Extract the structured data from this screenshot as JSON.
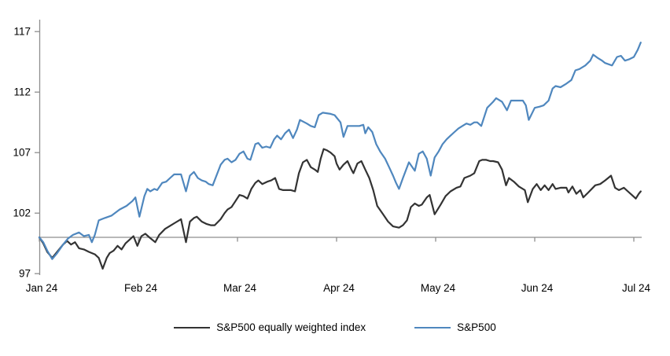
{
  "chart_data": {
    "type": "line",
    "title": "",
    "legend_position": "bottom",
    "background_color": "#ffffff",
    "axis_color": "#8e8e8e",
    "text_color": "#000000",
    "x_axis": {
      "unit": "month",
      "tick_labels": [
        "Jan 24",
        "Feb 24",
        "Mar 24",
        "Apr 24",
        "May 24",
        "Jun 24",
        "Jul 24"
      ],
      "range_months": [
        0,
        6.07
      ],
      "baseline_value": 100,
      "grid": false
    },
    "y_axis": {
      "ticks": [
        97,
        102,
        107,
        112,
        117
      ],
      "range": [
        97,
        118
      ],
      "grid": false
    },
    "series": [
      {
        "name": "S&P500 equally weighted index",
        "color": "#333333",
        "points": [
          [
            0,
            100
          ],
          [
            0.04,
            99.5
          ],
          [
            0.08,
            98.8
          ],
          [
            0.13,
            98.3
          ],
          [
            0.18,
            98.8
          ],
          [
            0.24,
            99.4
          ],
          [
            0.28,
            99.7
          ],
          [
            0.32,
            99.4
          ],
          [
            0.36,
            99.6
          ],
          [
            0.4,
            99.1
          ],
          [
            0.45,
            99
          ],
          [
            0.5,
            98.8
          ],
          [
            0.56,
            98.6
          ],
          [
            0.6,
            98.3
          ],
          [
            0.64,
            97.4
          ],
          [
            0.68,
            98.3
          ],
          [
            0.71,
            98.7
          ],
          [
            0.75,
            98.9
          ],
          [
            0.79,
            99.3
          ],
          [
            0.83,
            99
          ],
          [
            0.87,
            99.5
          ],
          [
            0.91,
            99.8
          ],
          [
            0.95,
            100.1
          ],
          [
            0.99,
            99.3
          ],
          [
            1.03,
            100.1
          ],
          [
            1.07,
            100.3
          ],
          [
            1.11,
            100
          ],
          [
            1.17,
            99.6
          ],
          [
            1.21,
            100.2
          ],
          [
            1.27,
            100.7
          ],
          [
            1.33,
            101
          ],
          [
            1.37,
            101.2
          ],
          [
            1.43,
            101.5
          ],
          [
            1.48,
            99.6
          ],
          [
            1.52,
            101.3
          ],
          [
            1.56,
            101.6
          ],
          [
            1.59,
            101.7
          ],
          [
            1.64,
            101.3
          ],
          [
            1.69,
            101.1
          ],
          [
            1.73,
            101
          ],
          [
            1.77,
            101
          ],
          [
            1.83,
            101.5
          ],
          [
            1.87,
            102
          ],
          [
            1.9,
            102.3
          ],
          [
            1.94,
            102.5
          ],
          [
            1.98,
            103
          ],
          [
            2.02,
            103.5
          ],
          [
            2.06,
            103.4
          ],
          [
            2.1,
            103.2
          ],
          [
            2.14,
            104
          ],
          [
            2.18,
            104.5
          ],
          [
            2.21,
            104.7
          ],
          [
            2.25,
            104.4
          ],
          [
            2.3,
            104.6
          ],
          [
            2.34,
            104.7
          ],
          [
            2.38,
            104.9
          ],
          [
            2.42,
            104
          ],
          [
            2.46,
            103.9
          ],
          [
            2.5,
            103.9
          ],
          [
            2.54,
            103.9
          ],
          [
            2.58,
            103.8
          ],
          [
            2.62,
            105.3
          ],
          [
            2.66,
            106.2
          ],
          [
            2.7,
            106.4
          ],
          [
            2.74,
            105.8
          ],
          [
            2.78,
            105.6
          ],
          [
            2.81,
            105.4
          ],
          [
            2.84,
            106.5
          ],
          [
            2.87,
            107.3
          ],
          [
            2.9,
            107.2
          ],
          [
            2.94,
            107
          ],
          [
            2.98,
            106.7
          ],
          [
            3,
            106.1
          ],
          [
            3.03,
            105.6
          ],
          [
            3.07,
            106
          ],
          [
            3.11,
            106.3
          ],
          [
            3.15,
            105.6
          ],
          [
            3.17,
            105.3
          ],
          [
            3.21,
            106.1
          ],
          [
            3.25,
            106.3
          ],
          [
            3.29,
            105.6
          ],
          [
            3.33,
            104.9
          ],
          [
            3.37,
            103.9
          ],
          [
            3.41,
            102.6
          ],
          [
            3.47,
            101.9
          ],
          [
            3.52,
            101.3
          ],
          [
            3.57,
            100.9
          ],
          [
            3.63,
            100.8
          ],
          [
            3.67,
            101
          ],
          [
            3.71,
            101.4
          ],
          [
            3.75,
            102.5
          ],
          [
            3.79,
            102.8
          ],
          [
            3.83,
            102.6
          ],
          [
            3.86,
            102.7
          ],
          [
            3.91,
            103.3
          ],
          [
            3.94,
            103.5
          ],
          [
            3.99,
            101.9
          ],
          [
            4.05,
            102.7
          ],
          [
            4.1,
            103.4
          ],
          [
            4.15,
            103.8
          ],
          [
            4.21,
            104.1
          ],
          [
            4.25,
            104.2
          ],
          [
            4.29,
            104.9
          ],
          [
            4.35,
            105.1
          ],
          [
            4.39,
            105.3
          ],
          [
            4.44,
            106.3
          ],
          [
            4.47,
            106.4
          ],
          [
            4.51,
            106.4
          ],
          [
            4.55,
            106.3
          ],
          [
            4.58,
            106.3
          ],
          [
            4.63,
            106.2
          ],
          [
            4.67,
            105.6
          ],
          [
            4.71,
            104.3
          ],
          [
            4.74,
            104.9
          ],
          [
            4.79,
            104.6
          ],
          [
            4.84,
            104.2
          ],
          [
            4.9,
            103.9
          ],
          [
            4.93,
            102.9
          ],
          [
            4.98,
            104
          ],
          [
            5.02,
            104.4
          ],
          [
            5.06,
            103.9
          ],
          [
            5.1,
            104.3
          ],
          [
            5.14,
            103.9
          ],
          [
            5.18,
            104.4
          ],
          [
            5.21,
            104
          ],
          [
            5.26,
            104.1
          ],
          [
            5.32,
            104.1
          ],
          [
            5.34,
            103.7
          ],
          [
            5.38,
            104.2
          ],
          [
            5.42,
            103.6
          ],
          [
            5.46,
            103.9
          ],
          [
            5.49,
            103.3
          ],
          [
            5.54,
            103.7
          ],
          [
            5.61,
            104.3
          ],
          [
            5.66,
            104.4
          ],
          [
            5.71,
            104.7
          ],
          [
            5.77,
            105.1
          ],
          [
            5.81,
            104.1
          ],
          [
            5.85,
            103.9
          ],
          [
            5.9,
            104.1
          ],
          [
            5.94,
            103.8
          ],
          [
            5.98,
            103.5
          ],
          [
            6.02,
            103.2
          ],
          [
            6.05,
            103.6
          ],
          [
            6.07,
            103.8
          ]
        ]
      },
      {
        "name": "S&P500",
        "color": "#4f87be",
        "points": [
          [
            0,
            100
          ],
          [
            0.04,
            99.6
          ],
          [
            0.08,
            98.9
          ],
          [
            0.13,
            98.2
          ],
          [
            0.18,
            98.7
          ],
          [
            0.24,
            99.4
          ],
          [
            0.29,
            99.9
          ],
          [
            0.34,
            100.2
          ],
          [
            0.4,
            100.4
          ],
          [
            0.45,
            100.1
          ],
          [
            0.5,
            100.2
          ],
          [
            0.53,
            99.6
          ],
          [
            0.56,
            100.2
          ],
          [
            0.6,
            101.4
          ],
          [
            0.66,
            101.6
          ],
          [
            0.73,
            101.8
          ],
          [
            0.81,
            102.3
          ],
          [
            0.88,
            102.6
          ],
          [
            0.94,
            103
          ],
          [
            0.97,
            103.3
          ],
          [
            1.01,
            101.7
          ],
          [
            1.06,
            103.4
          ],
          [
            1.09,
            104
          ],
          [
            1.12,
            103.8
          ],
          [
            1.16,
            104
          ],
          [
            1.19,
            103.9
          ],
          [
            1.24,
            104.5
          ],
          [
            1.28,
            104.6
          ],
          [
            1.32,
            104.9
          ],
          [
            1.36,
            105.2
          ],
          [
            1.43,
            105.2
          ],
          [
            1.48,
            103.8
          ],
          [
            1.52,
            105.1
          ],
          [
            1.56,
            105.4
          ],
          [
            1.6,
            104.9
          ],
          [
            1.64,
            104.7
          ],
          [
            1.68,
            104.6
          ],
          [
            1.71,
            104.4
          ],
          [
            1.75,
            104.3
          ],
          [
            1.83,
            106
          ],
          [
            1.87,
            106.4
          ],
          [
            1.9,
            106.5
          ],
          [
            1.94,
            106.2
          ],
          [
            1.98,
            106.4
          ],
          [
            2.02,
            106.9
          ],
          [
            2.06,
            107.1
          ],
          [
            2.1,
            106.5
          ],
          [
            2.13,
            106.4
          ],
          [
            2.18,
            107.7
          ],
          [
            2.21,
            107.8
          ],
          [
            2.25,
            107.4
          ],
          [
            2.29,
            107.5
          ],
          [
            2.33,
            107.4
          ],
          [
            2.37,
            108.1
          ],
          [
            2.4,
            108.4
          ],
          [
            2.44,
            108.1
          ],
          [
            2.48,
            108.6
          ],
          [
            2.52,
            108.9
          ],
          [
            2.56,
            108.2
          ],
          [
            2.6,
            108.9
          ],
          [
            2.63,
            109.7
          ],
          [
            2.7,
            109.4
          ],
          [
            2.74,
            109.2
          ],
          [
            2.78,
            109.1
          ],
          [
            2.82,
            110.1
          ],
          [
            2.86,
            110.3
          ],
          [
            2.94,
            110.2
          ],
          [
            2.98,
            110.1
          ],
          [
            3.04,
            109.5
          ],
          [
            3.07,
            108.3
          ],
          [
            3.11,
            109.2
          ],
          [
            3.17,
            109.2
          ],
          [
            3.23,
            109.2
          ],
          [
            3.27,
            109.3
          ],
          [
            3.29,
            108.6
          ],
          [
            3.32,
            109.1
          ],
          [
            3.36,
            108.7
          ],
          [
            3.4,
            107.7
          ],
          [
            3.44,
            107.1
          ],
          [
            3.49,
            106.5
          ],
          [
            3.53,
            105.8
          ],
          [
            3.57,
            105.1
          ],
          [
            3.6,
            104.5
          ],
          [
            3.63,
            104
          ],
          [
            3.67,
            104.9
          ],
          [
            3.73,
            106.2
          ],
          [
            3.79,
            105.5
          ],
          [
            3.83,
            106.9
          ],
          [
            3.87,
            107.1
          ],
          [
            3.91,
            106.5
          ],
          [
            3.95,
            105.1
          ],
          [
            3.99,
            106.6
          ],
          [
            4.03,
            107.1
          ],
          [
            4.07,
            107.7
          ],
          [
            4.11,
            108.1
          ],
          [
            4.15,
            108.4
          ],
          [
            4.19,
            108.7
          ],
          [
            4.23,
            109
          ],
          [
            4.27,
            109.2
          ],
          [
            4.31,
            109.4
          ],
          [
            4.35,
            109.3
          ],
          [
            4.39,
            109.5
          ],
          [
            4.42,
            109.5
          ],
          [
            4.46,
            109.2
          ],
          [
            4.5,
            110.2
          ],
          [
            4.52,
            110.7
          ],
          [
            4.58,
            111.2
          ],
          [
            4.61,
            111.5
          ],
          [
            4.67,
            111.2
          ],
          [
            4.72,
            110.5
          ],
          [
            4.76,
            111.3
          ],
          [
            4.82,
            111.3
          ],
          [
            4.88,
            111.3
          ],
          [
            4.91,
            110.9
          ],
          [
            4.94,
            109.7
          ],
          [
            5,
            110.7
          ],
          [
            5.05,
            110.8
          ],
          [
            5.09,
            110.9
          ],
          [
            5.14,
            111.3
          ],
          [
            5.18,
            112.3
          ],
          [
            5.21,
            112.5
          ],
          [
            5.26,
            112.4
          ],
          [
            5.32,
            112.7
          ],
          [
            5.37,
            113
          ],
          [
            5.41,
            113.8
          ],
          [
            5.45,
            113.9
          ],
          [
            5.51,
            114.2
          ],
          [
            5.56,
            114.6
          ],
          [
            5.59,
            115.1
          ],
          [
            5.64,
            114.8
          ],
          [
            5.68,
            114.6
          ],
          [
            5.71,
            114.4
          ],
          [
            5.78,
            114.2
          ],
          [
            5.83,
            114.9
          ],
          [
            5.87,
            115
          ],
          [
            5.91,
            114.6
          ],
          [
            5.95,
            114.7
          ],
          [
            6,
            114.9
          ],
          [
            6.04,
            115.5
          ],
          [
            6.07,
            116.1
          ]
        ]
      }
    ]
  },
  "legend": {
    "item1_label": "S&P500 equally weighted index",
    "item2_label": "S&P500"
  }
}
